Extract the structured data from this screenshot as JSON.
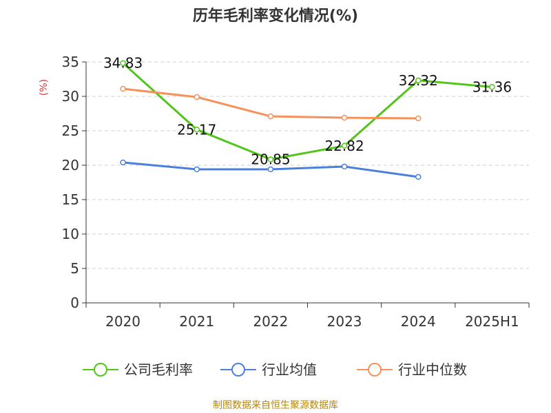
{
  "chart_data": {
    "type": "line",
    "title": "历年毛利率变化情况(%)",
    "ylabel": "(%)",
    "categories": [
      "2020",
      "2021",
      "2022",
      "2023",
      "2024",
      "2025H1"
    ],
    "ylim": [
      0,
      35
    ],
    "yticks": [
      0,
      5,
      10,
      15,
      20,
      25,
      30,
      35
    ],
    "grid": true,
    "legend_position": "bottom",
    "series": [
      {
        "name": "公司毛利率",
        "color": "#52c41a",
        "values": [
          34.83,
          25.17,
          20.85,
          22.82,
          32.32,
          31.36
        ],
        "labels": [
          "34.83",
          "25.17",
          "20.85",
          "22.82",
          "32.32",
          "31.36"
        ]
      },
      {
        "name": "行业均值",
        "color": "#4a7fdb",
        "values": [
          20.4,
          19.4,
          19.4,
          19.8,
          18.3,
          null
        ]
      },
      {
        "name": "行业中位数",
        "color": "#f5915a",
        "values": [
          31.1,
          29.9,
          27.1,
          26.9,
          26.8,
          null
        ]
      }
    ]
  },
  "source": "制图数据来自恒生聚源数据库"
}
